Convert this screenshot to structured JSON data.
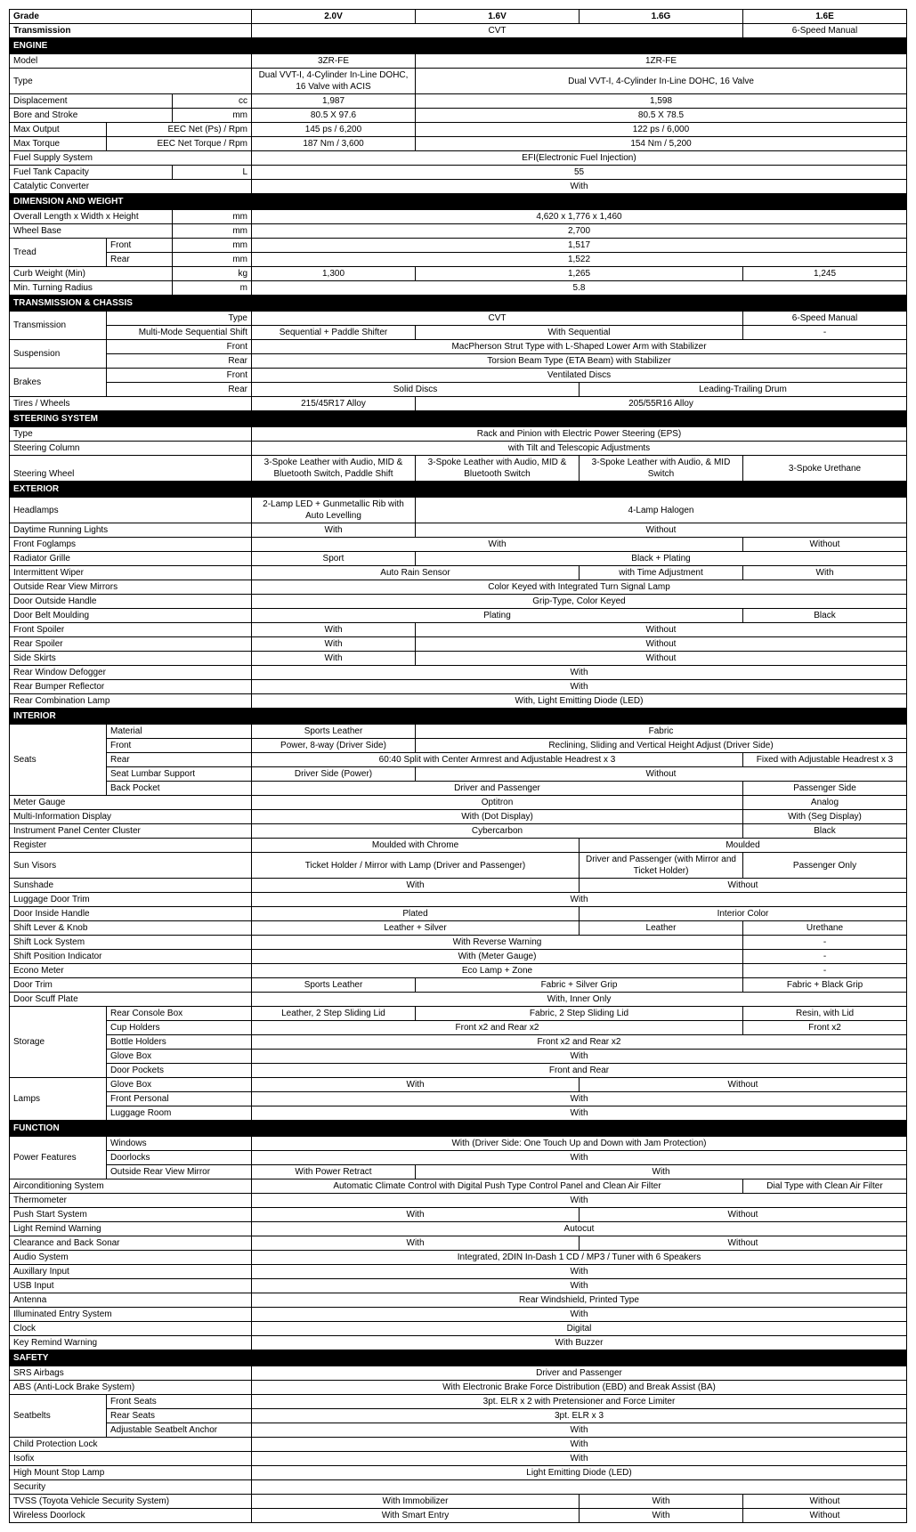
{
  "grades": [
    "2.0V",
    "1.6V",
    "1.6G",
    "1.6E"
  ],
  "L": {
    "grade": "Grade",
    "trans": "Transmission",
    "cvt": "CVT",
    "man6": "6-Speed Manual",
    "engine": "ENGINE",
    "model": "Model",
    "m3zr": "3ZR-FE",
    "m1zr": "1ZR-FE",
    "type": "Type",
    "t20": "Dual VVT-I, 4-Cylinder In-Line DOHC, 16 Valve with ACIS",
    "t16": "Dual VVT-I, 4-Cylinder In-Line DOHC, 16 Valve",
    "disp": "Displacement",
    "cc": "cc",
    "d20": "1,987",
    "d16": "1,598",
    "bore": "Bore and Stroke",
    "mm": "mm",
    "b20": "80.5 X 97.6",
    "b16": "80.5 X 78.5",
    "maxo": "Max Output",
    "eecn": "EEC Net (Ps) / Rpm",
    "mo20": "145 ps / 6,200",
    "mo16": "122 ps / 6,000",
    "maxt": "Max Torque",
    "eect": "EEC Net Torque / Rpm",
    "mt20": "187 Nm / 3,600",
    "mt16": "154 Nm / 5,200",
    "fuel": "Fuel Supply System",
    "efi": "EFI(Electronic Fuel Injection)",
    "tank": "Fuel Tank Capacity",
    "ltr": "L",
    "tank55": "55",
    "cat": "Catalytic Converter",
    "with": "With",
    "without": "Without",
    "dim": "DIMENSION AND WEIGHT",
    "lwh": " Overall   Length x Width x Height",
    "lwhv": "4,620 x 1,776 x 1,460",
    "wb": "Wheel Base",
    "wbv": "2,700",
    "tread": "Tread",
    "front": "Front",
    "rear": "Rear",
    "tf": "1,517",
    "tr": "1,522",
    "curb": "Curb Weight (Min)",
    "kg": "kg",
    "cw20": "1,300",
    "cw16v": "1,265",
    "cw16e": "1,245",
    "turn": "Min. Turning Radius",
    "m": "m",
    "turnv": "5.8",
    "tc": "TRANSMISSION & CHASSIS",
    "ttype": "Type",
    "mms": "Multi-Mode Sequential Shift",
    "seqp": "Sequential + Paddle Shifter",
    "wseq": "With Sequential",
    "dash": "-",
    "susp": "Suspension",
    "sf": "MacPherson Strut Type with L-Shaped Lower Arm with Stabilizer",
    "sr": "Torsion Beam Type (ETA Beam) with Stabilizer",
    "brakes": "Brakes",
    "vd": "Ventilated Discs",
    "sd": "Solid Discs",
    "ltd": "Leading-Trailing Drum",
    "tires": "Tires / Wheels",
    "t17": "215/45R17 Alloy",
    "t16w": "205/55R16 Alloy",
    "steer": "STEERING SYSTEM",
    "stype": "Rack and Pinion with Electric Power Steering (EPS)",
    "scol": "Steering Column",
    "scolv": "with Tilt and Telescopic Adjustments",
    "swheel": "Steering Wheel",
    "sw20": "3-Spoke Leather with Audio, MID & Bluetooth Switch, Paddle Shift",
    "sw16v": "3-Spoke Leather with Audio, MID & Bluetooth Switch",
    "sw16g": "3-Spoke Leather with Audio, & MID Switch",
    "sw16e": "3-Spoke Urethane",
    "ext": "EXTERIOR",
    "hl": "Headlamps",
    "hl20": "2-Lamp LED + Gunmetallic Rib with Auto Levelling",
    "hl16": "4-Lamp Halogen",
    "drl": "Daytime Running Lights",
    "ffog": "Front Foglamps",
    "rgrille": "Radiator Grille",
    "sport": "Sport",
    "bplat": "Black + Plating",
    "iwipe": "Intermittent Wiper",
    "ars": "Auto Rain Sensor",
    "wta": "with Time Adjustment",
    "orvm": "Outside Rear View Mirrors",
    "orvmv": "Color Keyed with Integrated Turn Signal Lamp",
    "doh": "Door Outside Handle",
    "dohv": "Grip-Type, Color Keyed",
    "dbm": "Door Belt Moulding",
    "plating": "Plating",
    "black": "Black",
    "fspoil": "Front Spoiler",
    "rspoil": "Rear Spoiler",
    "sskirt": "Side Skirts",
    "rwd": "Rear Window Defogger",
    "rbr": "Rear Bumper Reflector",
    "rcl": "Rear Combination Lamp",
    "rclv": "With, Light Emitting Diode (LED)",
    "int": "INTERIOR",
    "seats": "Seats",
    "mat": "Material",
    "sleath": "Sports Leather",
    "fabric": "Fabric",
    "sfront": "Power, 8-way (Driver Side)",
    "srecl": "Reclining, Sliding and Vertical Height Adjust (Driver Side)",
    "srear": "60:40 Split with Center Armrest and Adjustable Headrest x 3",
    "srear2": "Fixed with Adjustable Headrest x 3",
    "slumb": "Seat Lumbar Support",
    "dsp": "Driver Side (Power)",
    "bpock": "Back Pocket",
    "dap": "Driver and Passenger",
    "pside": "Passenger Side",
    "meter": "Meter Gauge",
    "opti": "Optitron",
    "analog": "Analog",
    "mid": "Multi-Information Display",
    "wdot": "With (Dot Display)",
    "wseg": "With (Seg Display)",
    "ipcc": "Instrument Panel Center Cluster",
    "cyber": "Cybercarbon",
    "reg": "Register",
    "mchrome": "Moulded with Chrome",
    "moulded": "Moulded",
    "sunv": "Sun Visors",
    "sunv1": "Ticket Holder / Mirror with Lamp (Driver and Passenger)",
    "sunv2": "Driver and Passenger (with Mirror and Ticket Holder)",
    "sunv3": "Passenger Only",
    "sunsh": "Sunshade",
    "ldt": "Luggage Door Trim",
    "dih": "Door Inside Handle",
    "plated": "Plated",
    "intcol": "Interior Color",
    "slk": "Shift Lever & Knob",
    "lsilv": "Leather + Silver",
    "leather": "Leather",
    "ure": "Urethane",
    "sls": "Shift Lock System",
    "wrw": "With Reverse Warning",
    "spi": "Shift Position Indicator",
    "wmg": "With (Meter Gauge)",
    "econ": "Econo Meter",
    "elz": "Eco Lamp + Zone",
    "dtrim": "Door Trim",
    "fsg": "Fabric + Silver Grip",
    "fbg": "Fabric + Black Grip",
    "dsp2": "Door Scuff Plate",
    "winner": "With, Inner Only",
    "stor": "Storage",
    "rcb": "Rear Console Box",
    "l2s": "Leather, 2 Step Sliding Lid",
    "f2s": "Fabric, 2 Step Sliding Lid",
    "resin": "Resin, with Lid",
    "cup": "Cup Holders",
    "f2r2": "Front x2 and Rear x2",
    "f2": "Front x2",
    "bhold": "Bottle Holders",
    "gbox": "Glove Box",
    "dpock": "Door Pockets",
    "fandr": "Front and Rear",
    "lamps": "Lamps",
    "fpers": "Front Personal",
    "lugg": "Luggage Room",
    "func": "FUNCTION",
    "pfeat": "Power Features",
    "windows": "Windows",
    "winv": "With (Driver Side: One Touch Up and Down with Jam Protection)",
    "dlocks": "Doorlocks",
    "orvm2": "Outside Rear View Mirror",
    "wpr": "With Power Retract",
    "ac": "Airconditioning System",
    "acv": "Automatic Climate Control with Digital Push Type Control Panel and Clean Air Filter",
    "dial": "Dial Type with Clean Air Filter",
    "therm": "Thermometer",
    "push": "Push Start System",
    "lrw": "Light Remind Warning",
    "autocut": "Autocut",
    "cbs": "Clearance and Back Sonar",
    "audio": "Audio System",
    "audiov": "Integrated, 2DIN In-Dash 1 CD / MP3 / Tuner with 6 Speakers",
    "aux": "Auxillary Input",
    "usb": "USB Input",
    "ant": "Antenna",
    "antv": "Rear Windshield, Printed Type",
    "ies": "Illuminated Entry System",
    "clock": "Clock",
    "digital": "Digital",
    "krw": "Key Remind Warning",
    "wbuz": "With Buzzer",
    "safety": "SAFETY",
    "srs": "SRS Airbags",
    "abs": "ABS (Anti-Lock Brake System)",
    "absv": "With Electronic Brake Force Distribution (EBD) and Break Assist (BA)",
    "sbelts": "Seatbelts",
    "fseats": "Front Seats",
    "fsbv": "3pt. ELR x 2 with Pretensioner and Force Limiter",
    "rseats": "Rear Seats",
    "rsbv": "3pt. ELR x 3",
    "asa": "Adjustable Seatbelt Anchor",
    "childp": "Child Protection Lock",
    "isofix": "Isofix",
    "hmsl": "High Mount Stop Lamp",
    "led": "Light Emitting Diode (LED)",
    "sec": "Security",
    "tvss": "TVSS (Toyota Vehicle Security System)",
    "wimmo": "With Immobilizer",
    "wdl": "Wireless Doorlock",
    "wse": "With Smart Entry"
  }
}
